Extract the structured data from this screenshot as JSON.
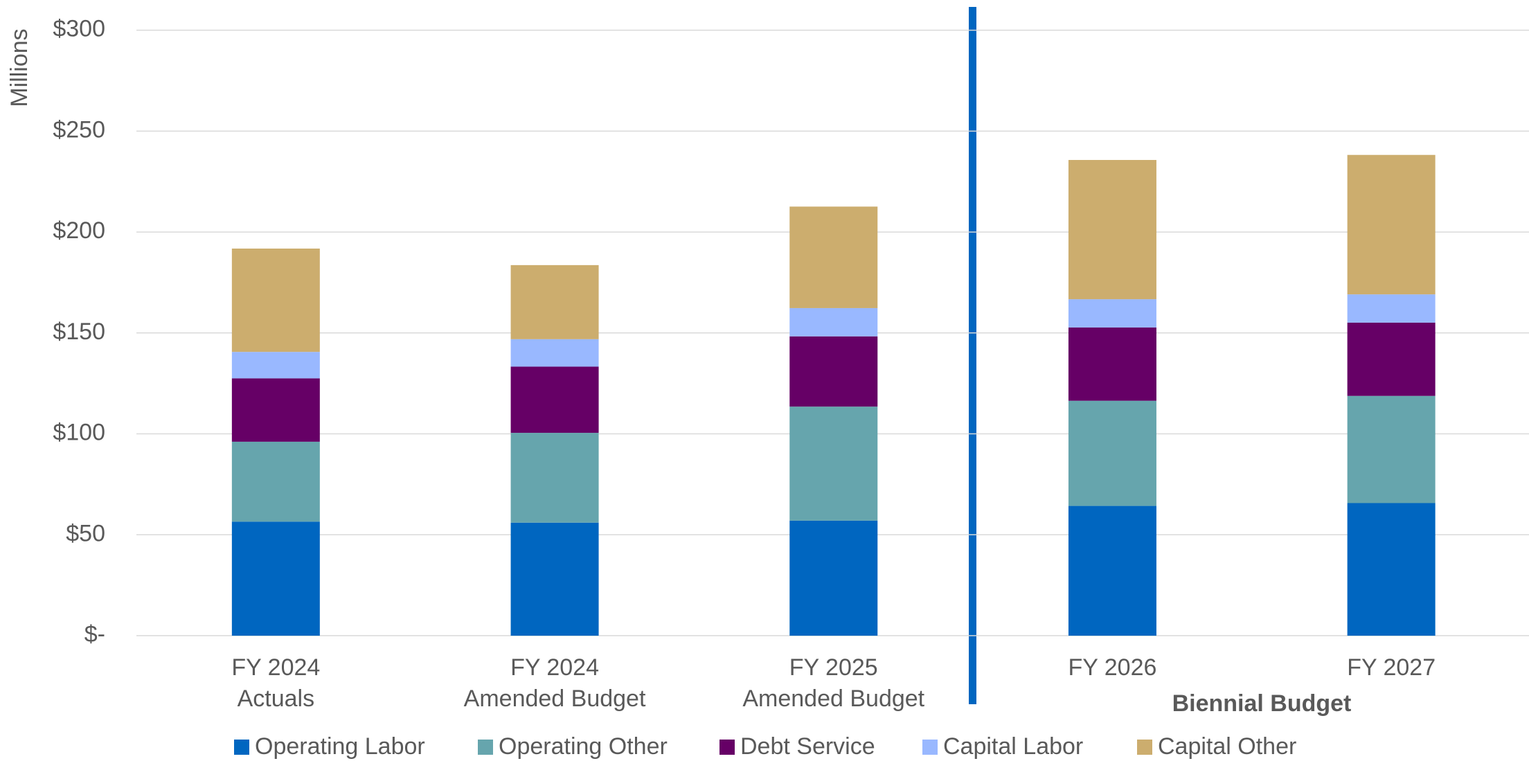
{
  "chart_data": {
    "type": "stacked_bar",
    "y_axis_label": "Millions",
    "annotation": "Biennial Budget",
    "categories": [
      "FY 2024\nActuals",
      "FY 2024\nAmended Budget",
      "FY 2025\nAmended Budget",
      "FY 2026",
      "FY 2027"
    ],
    "series": [
      {
        "name": "Operating Labor",
        "color": "#0066c0",
        "values": [
          56.5,
          56,
          57,
          64.3,
          65.7
        ]
      },
      {
        "name": "Operating Other",
        "color": "#66a5ad",
        "values": [
          39.6,
          44.5,
          56.5,
          52.1,
          53.1
        ]
      },
      {
        "name": "Debt Service",
        "color": "#660066",
        "values": [
          31.4,
          32.8,
          34.8,
          36.3,
          36.3
        ]
      },
      {
        "name": "Capital Labor",
        "color": "#99b8ff",
        "values": [
          13.1,
          13.6,
          14,
          14,
          14
        ]
      },
      {
        "name": "Capital Other",
        "color": "#ccad6e",
        "values": [
          51.2,
          36.7,
          50.3,
          69,
          69.1
        ]
      }
    ],
    "ylim": [
      0,
      300
    ],
    "yticks": [
      {
        "value": 0,
        "label": "$-"
      },
      {
        "value": 50,
        "label": "$50"
      },
      {
        "value": 100,
        "label": "$100"
      },
      {
        "value": 150,
        "label": "$150"
      },
      {
        "value": 200,
        "label": "$200"
      },
      {
        "value": 250,
        "label": "$250"
      },
      {
        "value": 300,
        "label": "$300"
      }
    ],
    "grid": true,
    "legend": "bottom"
  }
}
